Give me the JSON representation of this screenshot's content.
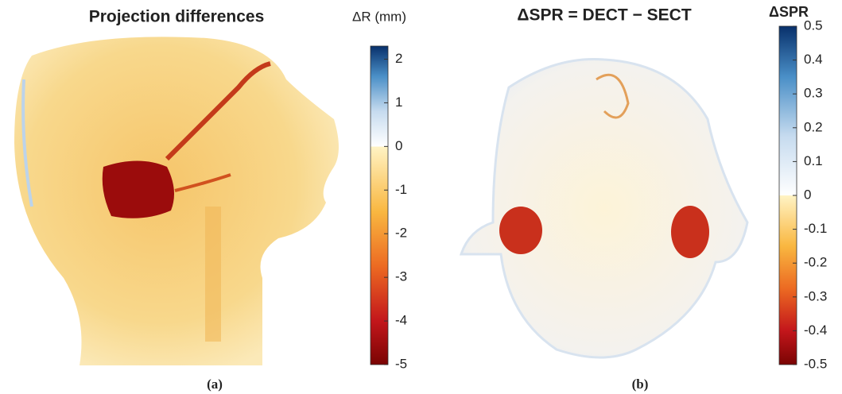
{
  "panels": [
    {
      "title": "Projection differences",
      "colorbar": {
        "label": "ΔR (mm)",
        "lim": [
          -5,
          2.3
        ],
        "ticks": [
          -5,
          -4,
          -3,
          -2,
          -1,
          0,
          1,
          2
        ]
      },
      "caption": "(a)"
    },
    {
      "title": "ΔSPR = DECT − SECT",
      "colorbar": {
        "label": "ΔSPR",
        "lim": [
          -0.5,
          0.5
        ],
        "ticks": [
          -0.5,
          -0.4,
          -0.3,
          -0.2,
          -0.1,
          0,
          0.1,
          0.2,
          0.3,
          0.4,
          0.5
        ]
      },
      "caption": "(b)"
    }
  ]
}
